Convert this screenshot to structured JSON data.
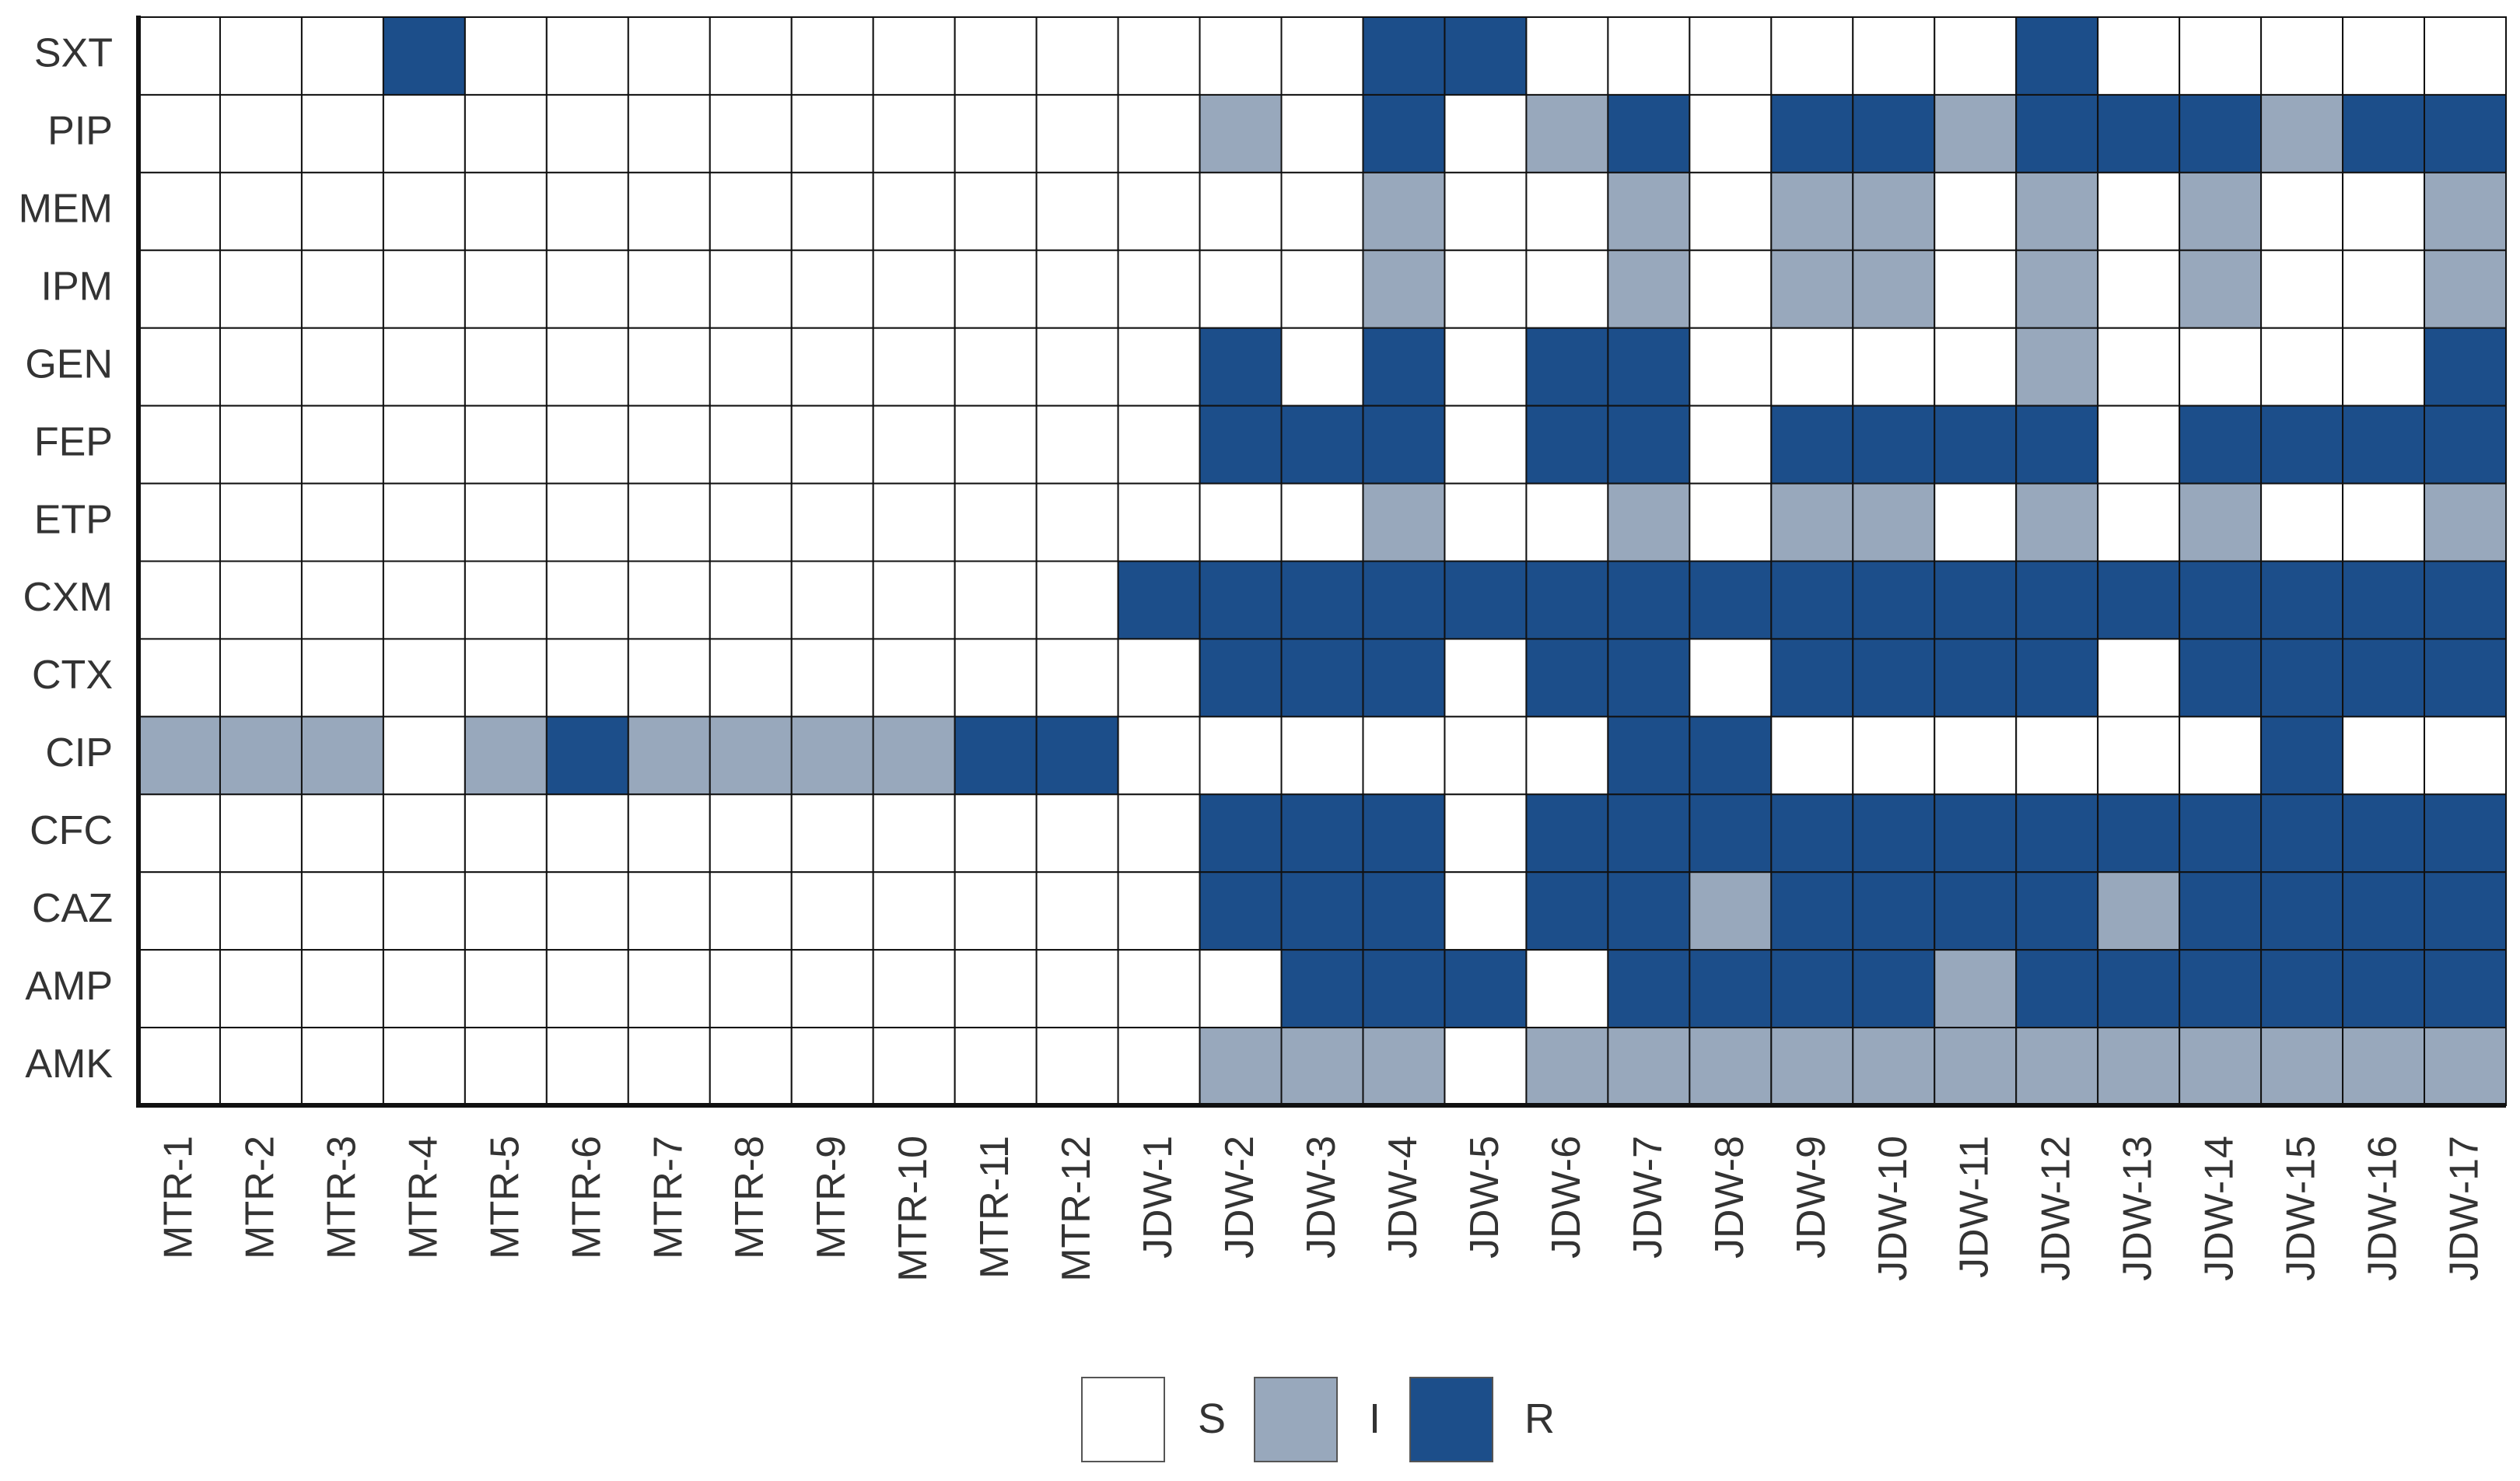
{
  "chart_data": {
    "type": "heatmap",
    "title": "",
    "xlabel": "",
    "ylabel": "",
    "rows": [
      "SXT",
      "PIP",
      "MEM",
      "IPM",
      "GEN",
      "FEP",
      "ETP",
      "CXM",
      "CTX",
      "CIP",
      "CFC",
      "CAZ",
      "AMP",
      "AMK"
    ],
    "columns": [
      "MTR-1",
      "MTR-2",
      "MTR-3",
      "MTR-4",
      "MTR-5",
      "MTR-6",
      "MTR-7",
      "MTR-8",
      "MTR-9",
      "MTR-10",
      "MTR-11",
      "MTR-12",
      "JDW-1",
      "JDW-2",
      "JDW-3",
      "JDW-4",
      "JDW-5",
      "JDW-6",
      "JDW-7",
      "JDW-8",
      "JDW-9",
      "JDW-10",
      "JDW-11",
      "JDW-12",
      "JDW-13",
      "JDW-14",
      "JDW-15",
      "JDW-16",
      "JDW-17"
    ],
    "values": [
      [
        "S",
        "S",
        "S",
        "R",
        "S",
        "S",
        "S",
        "S",
        "S",
        "S",
        "S",
        "S",
        "S",
        "S",
        "S",
        "R",
        "R",
        "S",
        "S",
        "S",
        "S",
        "S",
        "S",
        "R",
        "S",
        "S",
        "S",
        "S",
        "S"
      ],
      [
        "S",
        "S",
        "S",
        "S",
        "S",
        "S",
        "S",
        "S",
        "S",
        "S",
        "S",
        "S",
        "S",
        "I",
        "S",
        "R",
        "S",
        "I",
        "R",
        "S",
        "R",
        "R",
        "I",
        "R",
        "R",
        "R",
        "I",
        "R",
        "R"
      ],
      [
        "S",
        "S",
        "S",
        "S",
        "S",
        "S",
        "S",
        "S",
        "S",
        "S",
        "S",
        "S",
        "S",
        "S",
        "S",
        "I",
        "S",
        "S",
        "I",
        "S",
        "I",
        "I",
        "S",
        "I",
        "S",
        "I",
        "S",
        "S",
        "I"
      ],
      [
        "S",
        "S",
        "S",
        "S",
        "S",
        "S",
        "S",
        "S",
        "S",
        "S",
        "S",
        "S",
        "S",
        "S",
        "S",
        "I",
        "S",
        "S",
        "I",
        "S",
        "I",
        "I",
        "S",
        "I",
        "S",
        "I",
        "S",
        "S",
        "I"
      ],
      [
        "S",
        "S",
        "S",
        "S",
        "S",
        "S",
        "S",
        "S",
        "S",
        "S",
        "S",
        "S",
        "S",
        "R",
        "S",
        "R",
        "S",
        "R",
        "R",
        "S",
        "S",
        "S",
        "S",
        "I",
        "S",
        "S",
        "S",
        "S",
        "R"
      ],
      [
        "S",
        "S",
        "S",
        "S",
        "S",
        "S",
        "S",
        "S",
        "S",
        "S",
        "S",
        "S",
        "S",
        "R",
        "R",
        "R",
        "S",
        "R",
        "R",
        "S",
        "R",
        "R",
        "R",
        "R",
        "S",
        "R",
        "R",
        "R",
        "R"
      ],
      [
        "S",
        "S",
        "S",
        "S",
        "S",
        "S",
        "S",
        "S",
        "S",
        "S",
        "S",
        "S",
        "S",
        "S",
        "S",
        "I",
        "S",
        "S",
        "I",
        "S",
        "I",
        "I",
        "S",
        "I",
        "S",
        "I",
        "S",
        "S",
        "I"
      ],
      [
        "S",
        "S",
        "S",
        "S",
        "S",
        "S",
        "S",
        "S",
        "S",
        "S",
        "S",
        "S",
        "R",
        "R",
        "R",
        "R",
        "R",
        "R",
        "R",
        "R",
        "R",
        "R",
        "R",
        "R",
        "R",
        "R",
        "R",
        "R",
        "R"
      ],
      [
        "S",
        "S",
        "S",
        "S",
        "S",
        "S",
        "S",
        "S",
        "S",
        "S",
        "S",
        "S",
        "S",
        "R",
        "R",
        "R",
        "S",
        "R",
        "R",
        "S",
        "R",
        "R",
        "R",
        "R",
        "S",
        "R",
        "R",
        "R",
        "R"
      ],
      [
        "I",
        "I",
        "I",
        "S",
        "I",
        "R",
        "I",
        "I",
        "I",
        "I",
        "R",
        "R",
        "S",
        "S",
        "S",
        "S",
        "S",
        "S",
        "R",
        "R",
        "S",
        "S",
        "S",
        "S",
        "S",
        "S",
        "R",
        "S",
        "S"
      ],
      [
        "S",
        "S",
        "S",
        "S",
        "S",
        "S",
        "S",
        "S",
        "S",
        "S",
        "S",
        "S",
        "S",
        "R",
        "R",
        "R",
        "S",
        "R",
        "R",
        "R",
        "R",
        "R",
        "R",
        "R",
        "R",
        "R",
        "R",
        "R",
        "R"
      ],
      [
        "S",
        "S",
        "S",
        "S",
        "S",
        "S",
        "S",
        "S",
        "S",
        "S",
        "S",
        "S",
        "S",
        "R",
        "R",
        "R",
        "S",
        "R",
        "R",
        "I",
        "R",
        "R",
        "R",
        "R",
        "I",
        "R",
        "R",
        "R",
        "R"
      ],
      [
        "S",
        "S",
        "S",
        "S",
        "S",
        "S",
        "S",
        "S",
        "S",
        "S",
        "S",
        "S",
        "S",
        "S",
        "R",
        "R",
        "R",
        "S",
        "R",
        "R",
        "R",
        "R",
        "I",
        "R",
        "R",
        "R",
        "R",
        "R",
        "R"
      ],
      [
        "S",
        "S",
        "S",
        "S",
        "S",
        "S",
        "S",
        "S",
        "S",
        "S",
        "S",
        "S",
        "S",
        "I",
        "I",
        "I",
        "S",
        "I",
        "I",
        "I",
        "I",
        "I",
        "I",
        "I",
        "I",
        "I",
        "I",
        "I",
        "I"
      ]
    ],
    "categories": [
      "S",
      "I",
      "R"
    ],
    "legend": [
      {
        "key": "S",
        "label": "S",
        "color": "#ffffff"
      },
      {
        "key": "I",
        "label": "I",
        "color": "#98a8bc"
      },
      {
        "key": "R",
        "label": "R",
        "color": "#1c4e8a"
      }
    ],
    "legend_position": "bottom-center",
    "grid": true
  }
}
